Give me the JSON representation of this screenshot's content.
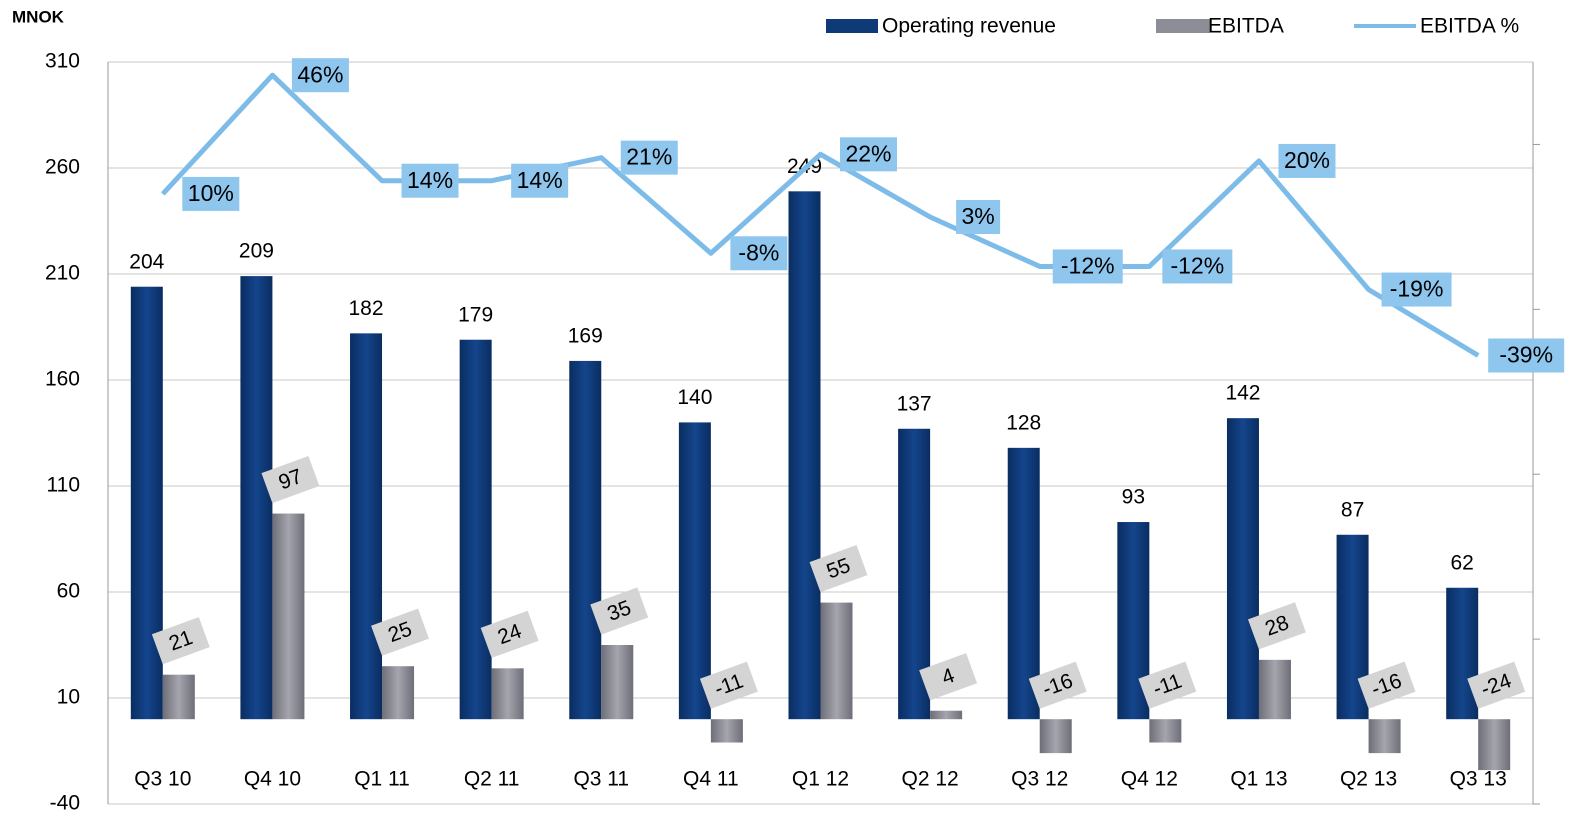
{
  "chart_data": {
    "type": "bar",
    "y_axis_label": "MNOK",
    "categories": [
      "Q3 10",
      "Q4 10",
      "Q1 11",
      "Q2 11",
      "Q3 11",
      "Q4 11",
      "Q1 12",
      "Q2 12",
      "Q3 12",
      "Q4 12",
      "Q1 13",
      "Q2 13",
      "Q3 13"
    ],
    "series": [
      {
        "name": "Operating revenue",
        "color": "#0e3a78",
        "values": [
          204,
          209,
          182,
          179,
          169,
          140,
          249,
          137,
          128,
          93,
          142,
          87,
          62
        ]
      },
      {
        "name": "EBITDA",
        "color": "#8d8d97",
        "values": [
          21,
          97,
          25,
          24,
          35,
          -11,
          55,
          4,
          -16,
          -11,
          28,
          -16,
          -24
        ]
      },
      {
        "name": "EBITDA %",
        "type": "line",
        "axis": "y2",
        "color": "#7dbce8",
        "values": [
          10,
          46,
          14,
          14,
          21,
          -8,
          22,
          3,
          -12,
          -12,
          20,
          -19,
          -39
        ],
        "value_labels": [
          "10%",
          "46%",
          "14%",
          "14%",
          "21%",
          "-8%",
          "22%",
          "3%",
          "-12%",
          "-12%",
          "20%",
          "-19%",
          "-39%"
        ]
      }
    ],
    "ylim": [
      -40,
      310
    ],
    "yticks": [
      -40,
      10,
      60,
      110,
      160,
      210,
      260,
      310
    ],
    "y2lim": [
      -175,
      50
    ],
    "y2ticks": [
      -175,
      -125,
      -75,
      -25,
      25
    ],
    "grid": true,
    "legend": "top"
  }
}
